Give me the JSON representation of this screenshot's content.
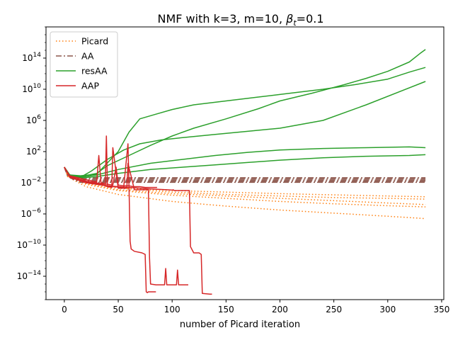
{
  "chart_data": {
    "type": "line",
    "title": "NMF with k=3, m=10,  β_t=0.1",
    "title_prefix": "NMF with k=3, m=10,  ",
    "title_beta": "β",
    "title_sub": "t",
    "title_suffix": "=0.1",
    "xlabel": "number of Picard iteration",
    "ylabel": "",
    "xlim": [
      -17,
      352
    ],
    "ylim_log10": [
      -17,
      18
    ],
    "y_scale": "log",
    "grid": false,
    "legend_position": "top-left",
    "x_ticks": [
      0,
      50,
      100,
      150,
      200,
      250,
      300,
      350
    ],
    "y_ticks": [
      {
        "base": "10",
        "exp": "−14",
        "log10": -14
      },
      {
        "base": "10",
        "exp": "−10",
        "log10": -10
      },
      {
        "base": "10",
        "exp": "−6",
        "log10": -6
      },
      {
        "base": "10",
        "exp": "−2",
        "log10": -2
      },
      {
        "base": "10",
        "exp": "2",
        "log10": 2
      },
      {
        "base": "10",
        "exp": "6",
        "log10": 6
      },
      {
        "base": "10",
        "exp": "10",
        "log10": 10
      },
      {
        "base": "10",
        "exp": "14",
        "log10": 14
      }
    ],
    "series": [
      {
        "name": "Picard",
        "color": "#ff7f0e",
        "style": "dotted",
        "runs": [
          {
            "x": [
              0,
              3,
              8,
              20,
              50,
              100,
              150,
              200,
              250,
              300,
              335
            ],
            "log10y": [
              0,
              -1,
              -1.3,
              -2.0,
              -2.7,
              -3.2,
              -3.5,
              -3.7,
              -3.9,
              -4.0,
              -4.1
            ]
          },
          {
            "x": [
              0,
              3,
              8,
              20,
              50,
              100,
              150,
              200,
              250,
              300,
              335
            ],
            "log10y": [
              0,
              -1.1,
              -1.4,
              -2.1,
              -2.9,
              -3.4,
              -3.7,
              -4.0,
              -4.3,
              -4.6,
              -4.8
            ]
          },
          {
            "x": [
              0,
              3,
              8,
              20,
              50,
              100,
              150,
              200,
              250,
              300,
              335
            ],
            "log10y": [
              0,
              -1.0,
              -1.3,
              -1.9,
              -2.6,
              -3.0,
              -3.2,
              -3.4,
              -3.55,
              -3.7,
              -3.8
            ]
          },
          {
            "x": [
              0,
              3,
              8,
              20,
              50,
              100,
              150,
              200,
              250,
              300,
              335
            ],
            "log10y": [
              0,
              -1.2,
              -1.5,
              -2.2,
              -3.0,
              -3.6,
              -4.0,
              -4.4,
              -4.7,
              -4.95,
              -5.1
            ]
          },
          {
            "x": [
              0,
              3,
              8,
              20,
              50,
              100,
              150,
              200,
              250,
              300,
              335
            ],
            "log10y": [
              0,
              -1.2,
              -1.6,
              -2.5,
              -3.5,
              -4.4,
              -5.0,
              -5.5,
              -5.9,
              -6.3,
              -6.6
            ]
          }
        ]
      },
      {
        "name": "AA",
        "color": "#8c564b",
        "style": "dashdot",
        "runs": [
          {
            "x": [
              0,
              3,
              8,
              15,
              335
            ],
            "log10y": [
              0,
              -1.0,
              -1.2,
              -1.35,
              -1.35
            ]
          },
          {
            "x": [
              0,
              3,
              8,
              15,
              335
            ],
            "log10y": [
              0,
              -1.05,
              -1.3,
              -1.5,
              -1.5
            ]
          },
          {
            "x": [
              0,
              3,
              8,
              15,
              335
            ],
            "log10y": [
              0,
              -1.1,
              -1.4,
              -1.65,
              -1.65
            ]
          },
          {
            "x": [
              0,
              3,
              8,
              15,
              335
            ],
            "log10y": [
              0,
              -1.1,
              -1.45,
              -1.8,
              -1.8
            ]
          },
          {
            "x": [
              0,
              3,
              8,
              15,
              335
            ],
            "log10y": [
              0,
              -1.15,
              -1.55,
              -1.95,
              -1.95
            ]
          }
        ]
      },
      {
        "name": "resAA",
        "color": "#2ca02c",
        "style": "solid",
        "runs": [
          {
            "x": [
              0,
              5,
              15,
              30,
              40,
              60,
              80,
              100,
              120,
              150,
              180,
              200,
              230,
              260,
              280,
              300,
              320,
              330,
              335
            ],
            "log10y": [
              0,
              -1,
              -1.2,
              -0.8,
              0.2,
              1.5,
              2.8,
              4.0,
              5.0,
              6.2,
              7.5,
              8.5,
              9.5,
              10.6,
              11.4,
              12.3,
              13.5,
              14.6,
              15.1
            ]
          },
          {
            "x": [
              0,
              5,
              15,
              30,
              50,
              60,
              70,
              85,
              100,
              120,
              150,
              180,
              210,
              240,
              270,
              300,
              320,
              335
            ],
            "log10y": [
              0,
              -1,
              -1.1,
              -0.9,
              2.0,
              4.5,
              6.2,
              6.8,
              7.4,
              8.0,
              8.5,
              9.0,
              9.5,
              10.0,
              10.6,
              11.3,
              12.2,
              12.8
            ]
          },
          {
            "x": [
              0,
              5,
              15,
              25,
              40,
              55,
              70,
              90,
              110,
              140,
              170,
              200,
              240,
              280,
              335
            ],
            "log10y": [
              0,
              -1,
              -1.3,
              -0.5,
              1.0,
              2.2,
              3.0,
              3.5,
              3.8,
              4.2,
              4.6,
              5.0,
              6.0,
              8.0,
              11.0
            ]
          },
          {
            "x": [
              0,
              5,
              15,
              30,
              50,
              80,
              110,
              140,
              170,
              200,
              240,
              280,
              320,
              335
            ],
            "log10y": [
              0,
              -1,
              -1.3,
              -1.0,
              -0.3,
              0.5,
              1.0,
              1.5,
              1.9,
              2.2,
              2.4,
              2.5,
              2.6,
              2.5
            ]
          },
          {
            "x": [
              0,
              5,
              15,
              30,
              50,
              80,
              110,
              140,
              170,
              200,
              240,
              280,
              320,
              335
            ],
            "log10y": [
              0,
              -1,
              -1.4,
              -1.2,
              -0.8,
              -0.3,
              0.0,
              0.3,
              0.6,
              0.9,
              1.2,
              1.4,
              1.5,
              1.6
            ]
          }
        ]
      },
      {
        "name": "AAP",
        "color": "#d62728",
        "style": "solid",
        "runs": [
          {
            "x": [
              0,
              5,
              20,
              38,
              39,
              40,
              45,
              55,
              59,
              60,
              61,
              62,
              65,
              72,
              75,
              76,
              77,
              78,
              81,
              85
            ],
            "log10y": [
              0,
              -1.2,
              -1.8,
              -2.2,
              4.0,
              -2.5,
              -2.5,
              -2.6,
              3.0,
              -2.6,
              -9.5,
              -10.5,
              -10.8,
              -11.0,
              -11.2,
              -16.0,
              -16.1,
              -16.0,
              -16.0,
              -16.0
            ]
          },
          {
            "x": [
              0,
              5,
              20,
              36,
              40,
              44,
              45,
              50,
              58,
              59,
              65,
              70,
              75,
              78,
              79,
              80,
              85,
              93,
              94,
              95,
              100,
              104,
              105,
              106,
              115
            ],
            "log10y": [
              0,
              -1.2,
              -1.9,
              -2.3,
              -2.5,
              -2.6,
              2.5,
              -2.7,
              -2.7,
              0.5,
              -2.9,
              -2.9,
              -2.9,
              -2.9,
              -11.5,
              -15.0,
              -15.1,
              -15.1,
              -13.0,
              -15.1,
              -15.1,
              -15.1,
              -13.2,
              -15.1,
              -15.1
            ]
          },
          {
            "x": [
              0,
              5,
              20,
              40,
              60,
              80,
              95,
              100,
              101,
              102,
              115,
              116,
              117,
              120,
              125,
              127,
              128,
              135,
              137
            ],
            "log10y": [
              0,
              -1.3,
              -2.0,
              -2.4,
              -2.6,
              -2.8,
              -2.9,
              -2.95,
              -2.9,
              -3.0,
              -3.0,
              -3.0,
              -10.2,
              -11.0,
              -11.0,
              -11.2,
              -16.2,
              -16.3,
              -16.3
            ]
          },
          {
            "x": [
              0,
              5,
              20,
              30,
              32,
              34,
              40,
              45,
              48,
              50,
              55,
              60,
              64,
              65,
              70,
              75,
              80,
              84,
              85,
              86
            ],
            "log10y": [
              0,
              -1.1,
              -1.6,
              -1.9,
              1.5,
              -2.0,
              -2.2,
              -2.3,
              0.0,
              -2.3,
              -2.4,
              -2.4,
              -2.5,
              -2.5,
              -2.5,
              -2.6,
              -2.6,
              -2.6,
              -2.6,
              -2.6
            ]
          }
        ]
      }
    ]
  }
}
